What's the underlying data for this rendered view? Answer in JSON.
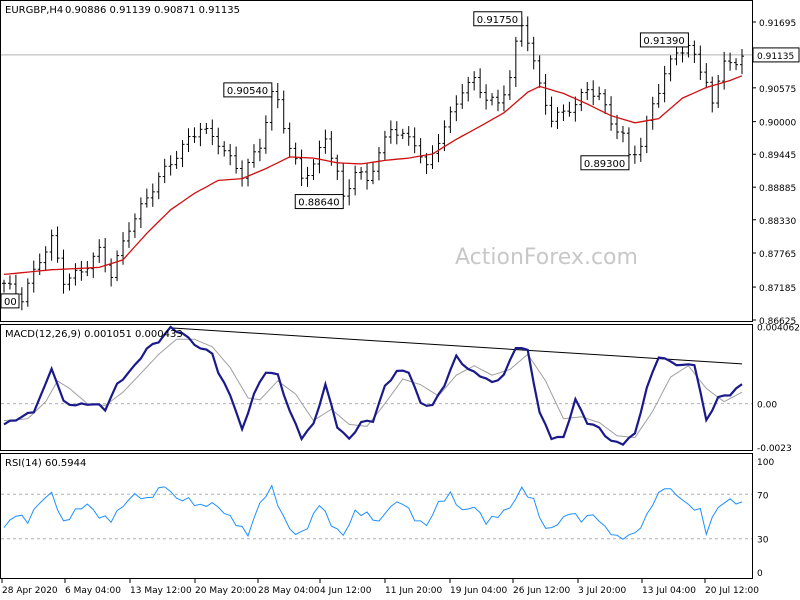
{
  "header": {
    "symbol": "EURGBP,H4",
    "ohlc": "0.90886 0.91139 0.90871 0.91135"
  },
  "watermark": "ActionForex.com",
  "colors": {
    "bars": "#000000",
    "ma": "#d01010",
    "macd_main": "#1a1a8c",
    "macd_signal": "#a0a0a0",
    "rsi": "#1e90ff",
    "level_line": "#b0b0b0",
    "frame": "#000000",
    "trendline": "#000000"
  },
  "chart_data": [
    {
      "type": "candlestick",
      "panel": "price",
      "y_ticks": [
        "0.91695",
        "0.91135",
        "0.90575",
        "0.90000",
        "0.89445",
        "0.88885",
        "0.88330",
        "0.87765",
        "0.87185",
        "0.86625"
      ],
      "ylim": [
        0.86625,
        0.91695
      ],
      "current_price_label": "0.91135",
      "current_price": 0.91135,
      "annotations": [
        {
          "text": "0.91750",
          "value": 0.9175,
          "x_index": 87
        },
        {
          "text": "0.91390",
          "value": 0.9139,
          "x_index": 115
        },
        {
          "text": "0.90540",
          "value": 0.9054,
          "x_index": 45
        },
        {
          "text": "0.88640",
          "value": 0.8864,
          "x_index": 57
        },
        {
          "text": "0.89300",
          "value": 0.893,
          "x_index": 105
        },
        {
          "text": "00",
          "value": 0.8695,
          "x_index": 0
        }
      ],
      "close_path": [
        [
          0,
          0.8725
        ],
        [
          3,
          0.87
        ],
        [
          6,
          0.8765
        ],
        [
          8,
          0.88
        ],
        [
          10,
          0.873
        ],
        [
          13,
          0.8745
        ],
        [
          16,
          0.878
        ],
        [
          18,
          0.874
        ],
        [
          21,
          0.882
        ],
        [
          24,
          0.887
        ],
        [
          26,
          0.8905
        ],
        [
          28,
          0.893
        ],
        [
          31,
          0.897
        ],
        [
          33,
          0.899
        ],
        [
          36,
          0.8965
        ],
        [
          38,
          0.8935
        ],
        [
          40,
          0.891
        ],
        [
          43,
          0.896
        ],
        [
          45,
          0.9045
        ],
        [
          46,
          0.9035
        ],
        [
          48,
          0.8955
        ],
        [
          50,
          0.8905
        ],
        [
          52,
          0.8925
        ],
        [
          54,
          0.8975
        ],
        [
          56,
          0.891
        ],
        [
          57,
          0.887
        ],
        [
          59,
          0.8915
        ],
        [
          61,
          0.89
        ],
        [
          63,
          0.8945
        ],
        [
          65,
          0.899
        ],
        [
          67,
          0.8975
        ],
        [
          69,
          0.8965
        ],
        [
          71,
          0.892
        ],
        [
          73,
          0.897
        ],
        [
          75,
          0.901
        ],
        [
          77,
          0.9055
        ],
        [
          79,
          0.907
        ],
        [
          81,
          0.904
        ],
        [
          83,
          0.903
        ],
        [
          85,
          0.9075
        ],
        [
          86,
          0.913
        ],
        [
          87,
          0.9165
        ],
        [
          88,
          0.914
        ],
        [
          90,
          0.906
        ],
        [
          92,
          0.9005
        ],
        [
          94,
          0.9015
        ],
        [
          96,
          0.903
        ],
        [
          98,
          0.9055
        ],
        [
          100,
          0.9045
        ],
        [
          102,
          0.9
        ],
        [
          104,
          0.8975
        ],
        [
          105,
          0.894
        ],
        [
          107,
          0.896
        ],
        [
          109,
          0.903
        ],
        [
          111,
          0.908
        ],
        [
          113,
          0.912
        ],
        [
          115,
          0.9125
        ],
        [
          116,
          0.911
        ],
        [
          118,
          0.907
        ],
        [
          119,
          0.9025
        ],
        [
          121,
          0.911
        ],
        [
          123,
          0.909
        ],
        [
          124,
          0.91135
        ]
      ],
      "ma_path": [
        [
          0,
          0.874
        ],
        [
          8,
          0.8748
        ],
        [
          16,
          0.8752
        ],
        [
          20,
          0.8765
        ],
        [
          24,
          0.881
        ],
        [
          28,
          0.885
        ],
        [
          32,
          0.8878
        ],
        [
          36,
          0.89
        ],
        [
          40,
          0.8903
        ],
        [
          44,
          0.892
        ],
        [
          48,
          0.894
        ],
        [
          52,
          0.8938
        ],
        [
          56,
          0.893
        ],
        [
          60,
          0.8928
        ],
        [
          64,
          0.8934
        ],
        [
          68,
          0.8938
        ],
        [
          72,
          0.8945
        ],
        [
          76,
          0.897
        ],
        [
          80,
          0.8992
        ],
        [
          84,
          0.9015
        ],
        [
          88,
          0.905
        ],
        [
          90,
          0.906
        ],
        [
          94,
          0.9048
        ],
        [
          98,
          0.903
        ],
        [
          102,
          0.901
        ],
        [
          106,
          0.8998
        ],
        [
          110,
          0.9005
        ],
        [
          114,
          0.904
        ],
        [
          118,
          0.9058
        ],
        [
          122,
          0.907
        ],
        [
          124,
          0.9078
        ]
      ]
    },
    {
      "type": "line",
      "panel": "macd",
      "title": "MACD(12,26,9) 0.001051 0.000433",
      "y_ticks": [
        "0.004062",
        "0.00",
        "-0.0023"
      ],
      "ylim": [
        -0.0024,
        0.0041
      ],
      "trendline": [
        [
          28,
          0.004
        ],
        [
          124,
          0.0021
        ]
      ],
      "series": [
        {
          "name": "main",
          "values_path": [
            [
              0,
              -0.0011
            ],
            [
              3,
              -0.0007
            ],
            [
              5,
              -0.0004
            ],
            [
              7,
              0.001
            ],
            [
              8,
              0.0019
            ],
            [
              10,
              0.0001
            ],
            [
              12,
              -0.0001
            ],
            [
              14,
              -0.0
            ],
            [
              16,
              -0.0001
            ],
            [
              17,
              -0.0003
            ],
            [
              19,
              0.001
            ],
            [
              22,
              0.002
            ],
            [
              24,
              0.0029
            ],
            [
              26,
              0.0033
            ],
            [
              28,
              0.004
            ],
            [
              30,
              0.0037
            ],
            [
              33,
              0.0029
            ],
            [
              35,
              0.0027
            ],
            [
              36,
              0.0016
            ],
            [
              38,
              0.0005
            ],
            [
              40,
              -0.0014
            ],
            [
              42,
              0.0005
            ],
            [
              44,
              0.0017
            ],
            [
              46,
              0.0015
            ],
            [
              48,
              -0.0004
            ],
            [
              50,
              -0.0018
            ],
            [
              52,
              -0.0011
            ],
            [
              54,
              0.001
            ],
            [
              56,
              -0.0012
            ],
            [
              58,
              -0.0019
            ],
            [
              60,
              -0.001
            ],
            [
              62,
              -0.0009
            ],
            [
              64,
              0.0009
            ],
            [
              66,
              0.0017
            ],
            [
              68,
              0.0017
            ],
            [
              70,
              0.0
            ],
            [
              72,
              -0.0001
            ],
            [
              74,
              0.001
            ],
            [
              76,
              0.0025
            ],
            [
              78,
              0.0018
            ],
            [
              80,
              0.0015
            ],
            [
              82,
              0.0011
            ],
            [
              84,
              0.0015
            ],
            [
              86,
              0.003
            ],
            [
              88,
              0.0028
            ],
            [
              90,
              -0.0005
            ],
            [
              92,
              -0.0018
            ],
            [
              94,
              -0.0018
            ],
            [
              96,
              0.0002
            ],
            [
              98,
              -0.001
            ],
            [
              100,
              -0.0013
            ],
            [
              102,
              -0.002
            ],
            [
              104,
              -0.0021
            ],
            [
              106,
              -0.0016
            ],
            [
              108,
              0.0008
            ],
            [
              110,
              0.0025
            ],
            [
              112,
              0.0022
            ],
            [
              114,
              0.002
            ],
            [
              116,
              0.0021
            ],
            [
              118,
              -0.0009
            ],
            [
              120,
              0.0003
            ],
            [
              122,
              0.0005
            ],
            [
              124,
              0.001
            ]
          ]
        },
        {
          "name": "signal",
          "values_path": [
            [
              0,
              -0.0009
            ],
            [
              4,
              -0.0008
            ],
            [
              7,
              0.0001
            ],
            [
              9,
              0.0012
            ],
            [
              11,
              0.0008
            ],
            [
              14,
              0.0
            ],
            [
              17,
              -0.0001
            ],
            [
              20,
              0.0006
            ],
            [
              23,
              0.0016
            ],
            [
              26,
              0.0026
            ],
            [
              29,
              0.0034
            ],
            [
              32,
              0.0034
            ],
            [
              35,
              0.003
            ],
            [
              38,
              0.0019
            ],
            [
              41,
              0.0003
            ],
            [
              43,
              0.0002
            ],
            [
              46,
              0.0012
            ],
            [
              49,
              0.0005
            ],
            [
              52,
              -0.0009
            ],
            [
              55,
              -0.0003
            ],
            [
              58,
              -0.0011
            ],
            [
              61,
              -0.0012
            ],
            [
              64,
              0.0
            ],
            [
              67,
              0.0013
            ],
            [
              70,
              0.001
            ],
            [
              73,
              0.0004
            ],
            [
              76,
              0.0015
            ],
            [
              79,
              0.002
            ],
            [
              82,
              0.0015
            ],
            [
              85,
              0.0018
            ],
            [
              88,
              0.0026
            ],
            [
              91,
              0.0012
            ],
            [
              94,
              -0.0008
            ],
            [
              97,
              -0.0007
            ],
            [
              100,
              -0.001
            ],
            [
              103,
              -0.0017
            ],
            [
              106,
              -0.0018
            ],
            [
              109,
              -0.0004
            ],
            [
              112,
              0.0014
            ],
            [
              115,
              0.002
            ],
            [
              118,
              0.0008
            ],
            [
              121,
              0.0001
            ],
            [
              124,
              0.0006
            ]
          ]
        }
      ]
    },
    {
      "type": "line",
      "panel": "rsi",
      "title": "RSI(14) 60.5944",
      "y_ticks": [
        "100",
        "70",
        "30",
        "0"
      ],
      "ylim": [
        0,
        100
      ],
      "levels": [
        70,
        30
      ],
      "series": [
        {
          "name": "RSI",
          "values_path": [
            [
              0,
              40
            ],
            [
              2,
              52
            ],
            [
              4,
              46
            ],
            [
              6,
              63
            ],
            [
              8,
              71
            ],
            [
              10,
              44
            ],
            [
              12,
              55
            ],
            [
              14,
              61
            ],
            [
              16,
              50
            ],
            [
              18,
              47
            ],
            [
              20,
              60
            ],
            [
              22,
              70
            ],
            [
              24,
              65
            ],
            [
              26,
              74
            ],
            [
              27,
              78
            ],
            [
              29,
              66
            ],
            [
              31,
              65
            ],
            [
              33,
              59
            ],
            [
              35,
              62
            ],
            [
              37,
              54
            ],
            [
              39,
              44
            ],
            [
              41,
              34
            ],
            [
              43,
              62
            ],
            [
              45,
              76
            ],
            [
              47,
              48
            ],
            [
              49,
              33
            ],
            [
              51,
              40
            ],
            [
              53,
              62
            ],
            [
              55,
              43
            ],
            [
              57,
              33
            ],
            [
              59,
              54
            ],
            [
              61,
              52
            ],
            [
              63,
              45
            ],
            [
              65,
              60
            ],
            [
              67,
              63
            ],
            [
              69,
              48
            ],
            [
              71,
              42
            ],
            [
              73,
              62
            ],
            [
              75,
              70
            ],
            [
              77,
              55
            ],
            [
              79,
              59
            ],
            [
              81,
              45
            ],
            [
              83,
              51
            ],
            [
              85,
              58
            ],
            [
              87,
              75
            ],
            [
              89,
              64
            ],
            [
              91,
              38
            ],
            [
              93,
              43
            ],
            [
              95,
              54
            ],
            [
              97,
              47
            ],
            [
              99,
              52
            ],
            [
              101,
              40
            ],
            [
              103,
              31
            ],
            [
              105,
              32
            ],
            [
              107,
              40
            ],
            [
              109,
              62
            ],
            [
              111,
              77
            ],
            [
              113,
              70
            ],
            [
              115,
              60
            ],
            [
              117,
              55
            ],
            [
              118,
              36
            ],
            [
              120,
              59
            ],
            [
              122,
              65
            ],
            [
              124,
              61
            ]
          ]
        }
      ]
    }
  ],
  "x_ticks": [
    "28 Apr 2020",
    "6 May 04:00",
    "13 May 12:00",
    "20 May 20:00",
    "28 May 04:00",
    "4 Jun 12:00",
    "11 Jun 20:00",
    "19 Jun 04:00",
    "26 Jun 12:00",
    "3 Jul 20:00",
    "13 Jul 04:00",
    "20 Jul 12:00"
  ]
}
